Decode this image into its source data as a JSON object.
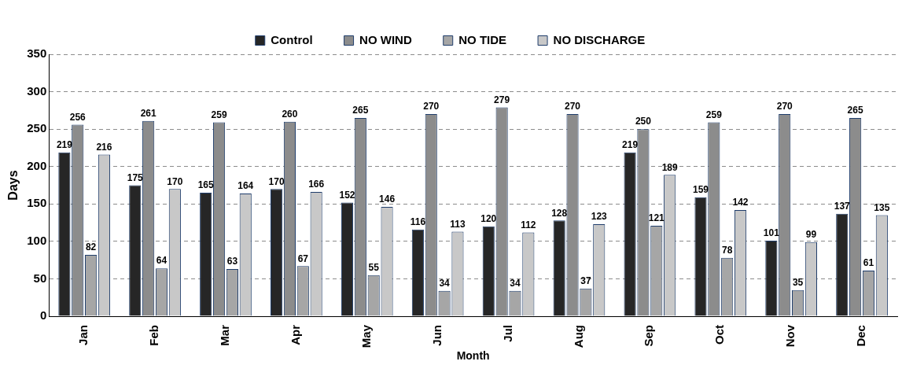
{
  "chart_data": {
    "type": "bar",
    "xlabel": "Month",
    "ylabel": "Days",
    "categories": [
      "Jan",
      "Feb",
      "Mar",
      "Apr",
      "May",
      "Jun",
      "Jul",
      "Aug",
      "Sep",
      "Oct",
      "Nov",
      "Dec"
    ],
    "series": [
      {
        "name": "Control",
        "color": "#262626",
        "values": [
          219,
          175,
          165,
          170,
          152,
          116,
          120,
          128,
          219,
          159,
          101,
          137
        ]
      },
      {
        "name": "NO WIND",
        "color": "#8c8c8c",
        "values": [
          256,
          261,
          259,
          260,
          265,
          270,
          279,
          270,
          250,
          259,
          270,
          265
        ]
      },
      {
        "name": "NO TIDE",
        "color": "#a6a6a6",
        "values": [
          82,
          64,
          63,
          67,
          55,
          34,
          34,
          37,
          121,
          78,
          35,
          61
        ]
      },
      {
        "name": "NO DISCHARGE",
        "color": "#c8c8c8",
        "values": [
          216,
          170,
          164,
          166,
          146,
          113,
          112,
          123,
          189,
          142,
          99,
          135
        ]
      }
    ],
    "ylim": [
      0,
      350
    ],
    "yticks": [
      0,
      50,
      100,
      150,
      200,
      250,
      300,
      350
    ],
    "grid": "y",
    "legend": "top",
    "data_labels": true
  }
}
